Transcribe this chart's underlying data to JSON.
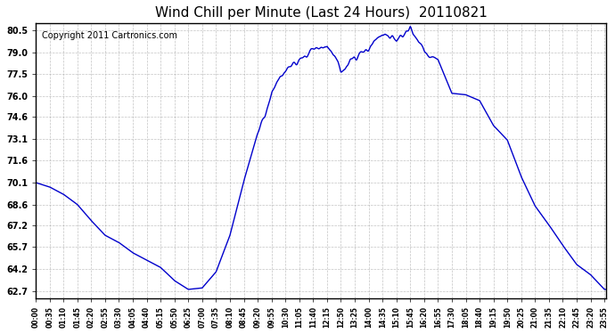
{
  "title": "Wind Chill per Minute (Last 24 Hours)  20110821",
  "copyright": "Copyright 2011 Cartronics.com",
  "line_color": "#0000cc",
  "bg_color": "#ffffff",
  "grid_color": "#aaaaaa",
  "yticks": [
    62.7,
    64.2,
    65.7,
    67.2,
    68.6,
    70.1,
    71.6,
    73.1,
    74.6,
    76.0,
    77.5,
    79.0,
    80.5
  ],
  "ylim": [
    62.2,
    81.0
  ],
  "xtick_labels": [
    "00:00",
    "00:35",
    "01:10",
    "01:45",
    "02:20",
    "02:55",
    "03:30",
    "04:05",
    "04:40",
    "05:15",
    "05:50",
    "06:25",
    "07:00",
    "07:35",
    "08:10",
    "08:45",
    "09:20",
    "09:55",
    "10:30",
    "11:05",
    "11:40",
    "12:15",
    "12:50",
    "13:25",
    "14:00",
    "14:35",
    "15:10",
    "15:45",
    "16:20",
    "16:55",
    "17:30",
    "18:05",
    "18:40",
    "19:15",
    "19:50",
    "20:25",
    "21:00",
    "21:35",
    "22:10",
    "22:45",
    "23:20",
    "23:55"
  ],
  "key_times_minutes": [
    0,
    35,
    70,
    105,
    140,
    175,
    210,
    245,
    280,
    315,
    350,
    385,
    420,
    455,
    490,
    525,
    560,
    595,
    630,
    665,
    700,
    735,
    770,
    805,
    840,
    875,
    910,
    945,
    980,
    1015,
    1050,
    1085,
    1120,
    1155,
    1190,
    1225,
    1260,
    1295,
    1330,
    1365,
    1400,
    1435
  ],
  "key_values": [
    70.1,
    69.8,
    69.3,
    68.6,
    67.5,
    66.5,
    66.0,
    65.3,
    64.8,
    64.3,
    63.4,
    62.8,
    62.9,
    64.0,
    66.5,
    70.2,
    73.5,
    76.3,
    77.8,
    78.5,
    79.3,
    79.5,
    77.8,
    78.8,
    79.2,
    80.3,
    79.8,
    80.7,
    79.1,
    78.5,
    76.2,
    76.1,
    75.7,
    74.0,
    73.0,
    70.5,
    68.5,
    67.2,
    65.8,
    64.5,
    63.8,
    62.8
  ]
}
